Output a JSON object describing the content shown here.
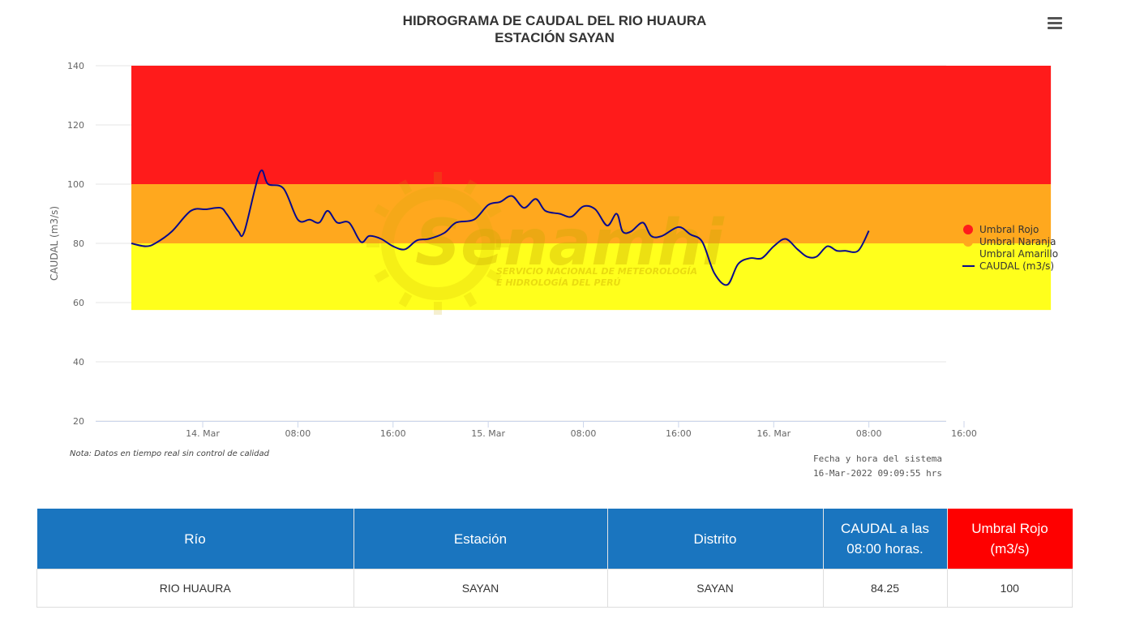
{
  "colors": {
    "rojo": "#ff1b1b",
    "naranja": "#ffa81e",
    "amarillo": "#ffff1c",
    "caudal_line": "#0a0a8c",
    "header_blue": "#1a75bf",
    "header_red": "#fe0000"
  },
  "menu": {
    "icon": "hamburger-menu-icon"
  },
  "watermark": {
    "brand": "Senamhi",
    "line1": "SERVICIO NACIONAL DE METEOROLOGÍA",
    "line2": "E HIDROLOGÍA DEL PERÚ"
  },
  "chart_data": {
    "type": "line",
    "title": "HIDROGRAMA DE CAUDAL DEL RIO HUAURA",
    "subtitle": "ESTACIÓN SAYAN",
    "ylabel": "CAUDAL (m3/s)",
    "ylim": [
      20,
      140
    ],
    "yticks": [
      "20",
      "40",
      "60",
      "80",
      "100",
      "120",
      "140"
    ],
    "x_unit": "hours",
    "xlim": [
      -9,
      62.5
    ],
    "xticks": [
      {
        "x": 0,
        "label": "14. Mar"
      },
      {
        "x": 8,
        "label": "08:00"
      },
      {
        "x": 16,
        "label": "16:00"
      },
      {
        "x": 24,
        "label": "15. Mar"
      },
      {
        "x": 32,
        "label": "08:00"
      },
      {
        "x": 40,
        "label": "16:00"
      },
      {
        "x": 48,
        "label": "16. Mar"
      },
      {
        "x": 56,
        "label": "08:00"
      },
      {
        "x": 64,
        "label": "16:00"
      }
    ],
    "legend_position": "right",
    "grid": true,
    "bands": [
      {
        "name": "Umbral Rojo",
        "from": 100,
        "to": 140,
        "color": "#ff1b1b"
      },
      {
        "name": "Umbral Naranja",
        "from": 80,
        "to": 100,
        "color": "#ffa81e"
      },
      {
        "name": "Umbral Amarillo",
        "from": 57.5,
        "to": 80,
        "color": "#ffff1c"
      }
    ],
    "band_x_range": [
      -6,
      71.3
    ],
    "series": [
      {
        "name": "CAUDAL (m3/s)",
        "color": "#0a0a8c",
        "x": [
          -6,
          -4.8,
          -4,
          -2.6,
          -1,
          0.3,
          1.5,
          2,
          2.5,
          3,
          3.5,
          4.8,
          5.5,
          6.8,
          8,
          9,
          9.8,
          10.5,
          11.3,
          12.3,
          13.3,
          14,
          15,
          16,
          17,
          18,
          19,
          20.3,
          21.3,
          22.8,
          24,
          25,
          26,
          27,
          28,
          28.8,
          30,
          31,
          32,
          33,
          34,
          34.8,
          35.3,
          36,
          37,
          37.7,
          38.6,
          40,
          41,
          42,
          43,
          44.1,
          45,
          46,
          47,
          48,
          49,
          50,
          50.8,
          51.6,
          52.5,
          53.3,
          54,
          55.1,
          56
        ],
        "y": [
          80,
          79,
          80,
          84,
          91,
          91.5,
          92,
          90,
          87,
          84,
          84,
          104,
          100,
          98.5,
          88,
          88,
          87,
          91,
          87,
          87,
          80.5,
          82.5,
          81.5,
          79,
          78,
          81,
          81.5,
          83.5,
          87,
          88,
          93,
          94,
          96,
          92,
          95,
          91,
          90,
          89,
          92.5,
          91.5,
          86,
          90,
          84,
          84,
          87,
          82.5,
          82.5,
          85.5,
          83,
          80.5,
          70,
          66,
          73,
          75,
          75,
          79,
          81.5,
          78,
          75.5,
          75.5,
          79,
          77.5,
          77.5,
          77.5,
          84.25
        ]
      }
    ]
  },
  "notes": {
    "nota": "Nota: Datos en tiempo real sin control de calidad",
    "fecha_label": "Fecha y hora del sistema",
    "fecha_value": "16-Mar-2022 09:09:55 hrs"
  },
  "table": {
    "headers": {
      "rio": "Río",
      "estacion": "Estación",
      "distrito": "Distrito",
      "caudal_line1": "CAUDAL a las",
      "caudal_line2": "08:00 horas.",
      "umbral_line1": "Umbral Rojo",
      "umbral_line2": "(m3/s)"
    },
    "row": {
      "rio": "RIO HUAURA",
      "estacion": "SAYAN",
      "distrito": "SAYAN",
      "caudal": "84.25",
      "umbral": "100"
    }
  }
}
